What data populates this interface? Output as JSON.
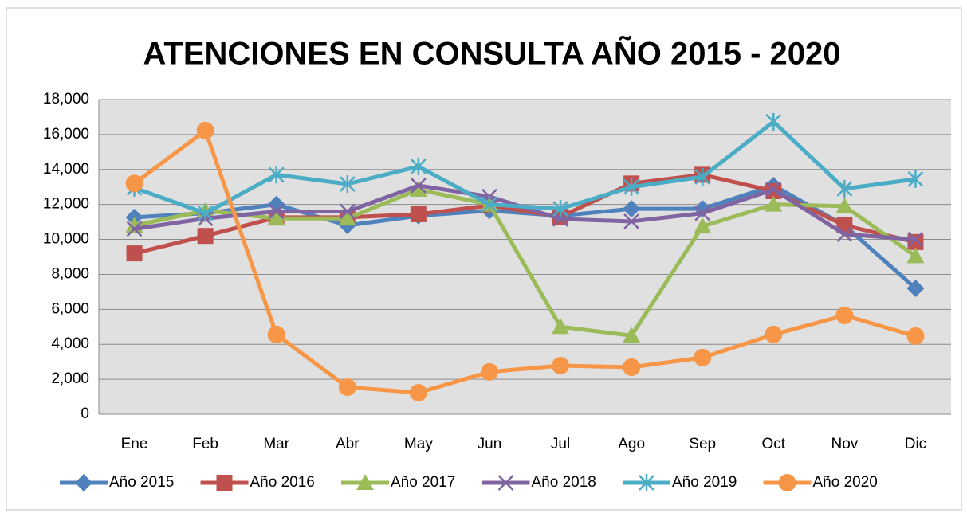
{
  "chart_data": {
    "type": "line",
    "title": "ATENCIONES EN CONSULTA AÑO 2015 - 2020",
    "categories": [
      "Ene",
      "Feb",
      "Mar",
      "Abr",
      "May",
      "Jun",
      "Jul",
      "Ago",
      "Sep",
      "Oct",
      "Nov",
      "Dic"
    ],
    "series": [
      {
        "name": "Año 2015",
        "color": "#4f81bd",
        "marker": "diamond",
        "values": [
          11260,
          11500,
          12000,
          10800,
          11350,
          11650,
          11350,
          11750,
          11750,
          13080,
          10800,
          7200
        ]
      },
      {
        "name": "Año 2016",
        "color": "#c0504d",
        "marker": "square",
        "values": [
          9200,
          10200,
          11260,
          11260,
          11440,
          11940,
          11300,
          13200,
          13700,
          12760,
          10800,
          9850
        ]
      },
      {
        "name": "Año 2017",
        "color": "#9bbb59",
        "marker": "triangle",
        "values": [
          10800,
          11650,
          11200,
          11200,
          12850,
          12000,
          5000,
          4500,
          10750,
          12000,
          11900,
          9050
        ]
      },
      {
        "name": "Año 2018",
        "color": "#8064a2",
        "marker": "x",
        "values": [
          10600,
          11200,
          11600,
          11600,
          13080,
          12450,
          11170,
          11030,
          11500,
          12850,
          10300,
          10000
        ]
      },
      {
        "name": "Año 2019",
        "color": "#4bacc6",
        "marker": "star",
        "values": [
          12950,
          11500,
          13700,
          13170,
          14170,
          12000,
          11750,
          13000,
          13580,
          16730,
          12900,
          13450
        ]
      },
      {
        "name": "Año 2020",
        "color": "#f79646",
        "marker": "circle",
        "values": [
          13200,
          16230,
          4560,
          1550,
          1230,
          2420,
          2780,
          2690,
          3240,
          4560,
          5650,
          4470
        ]
      }
    ],
    "ylim": [
      0,
      18000
    ],
    "yticks": [
      0,
      {
        "value": 2000,
        "label": "2,000"
      },
      {
        "value": 4000,
        "label": "4,000"
      },
      {
        "value": 6000,
        "label": "6,000"
      },
      {
        "value": 8000,
        "label": "8,000"
      },
      {
        "value": 10000,
        "label": "10,000"
      },
      {
        "value": 12000,
        "label": "12,000"
      },
      {
        "value": 14000,
        "label": "14,000"
      },
      {
        "value": 16000,
        "label": "16,000"
      },
      {
        "value": 18000,
        "label": "18,000"
      }
    ],
    "grid": true,
    "legend": "bottom"
  }
}
